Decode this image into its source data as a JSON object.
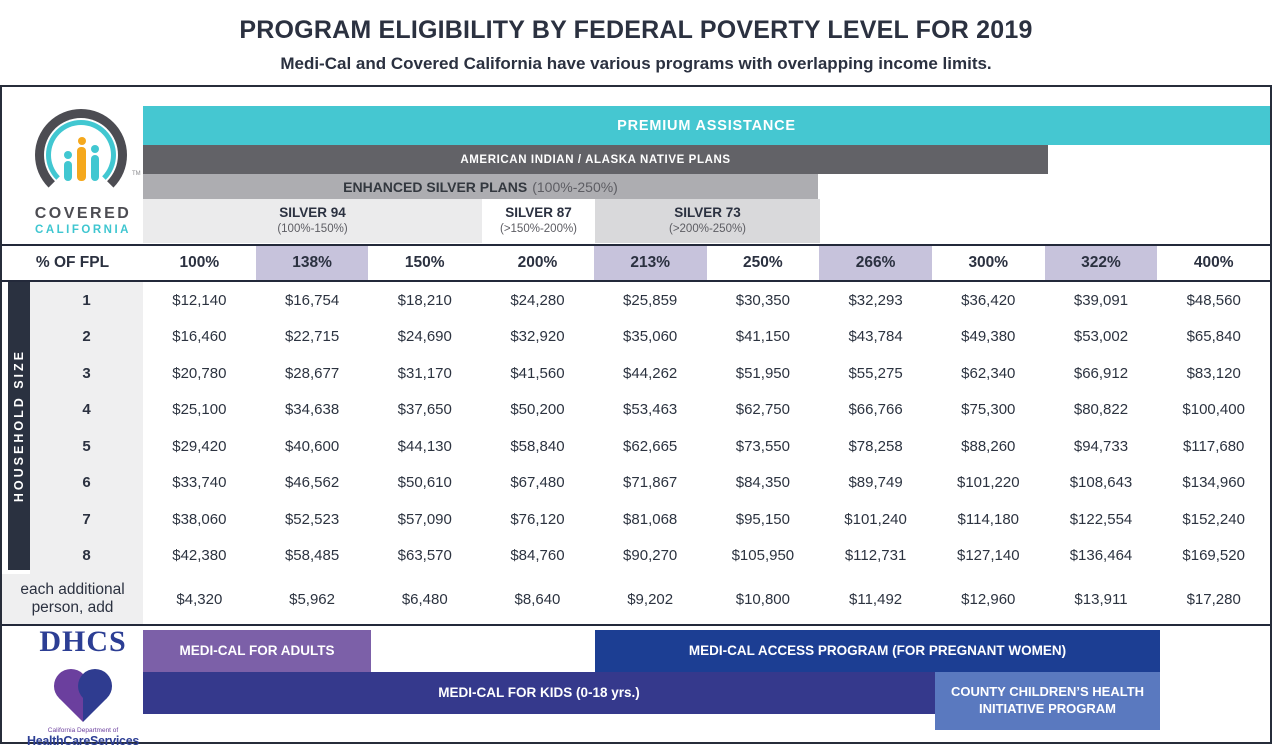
{
  "title": "PROGRAM ELIGIBILITY BY FEDERAL POVERTY LEVEL FOR 2019",
  "subtitle": "Medi-Cal and Covered California have various programs with overlapping income limits.",
  "logos": {
    "covered_california": {
      "line1": "COVERED",
      "line2": "CALIFORNIA",
      "tm": "TM"
    },
    "dhcs": {
      "acronym": "DHCS",
      "dept_line": "California Department of",
      "name": "HealthCareServices"
    }
  },
  "header_bars": {
    "premium_assistance": {
      "label": "PREMIUM ASSISTANCE",
      "color": "#45c7d1"
    },
    "ai_an_plans": {
      "label": "AMERICAN INDIAN / ALASKA NATIVE PLANS",
      "color": "#626267"
    },
    "enhanced_silver": {
      "label": "ENHANCED SILVER PLANS",
      "range": "(100%-250%)",
      "color": "#adadb1"
    },
    "silver_plans": [
      {
        "name": "SILVER 94",
        "range": "(100%-150%)"
      },
      {
        "name": "SILVER 87",
        "range": "(>150%-200%)"
      },
      {
        "name": "SILVER 73",
        "range": "(>200%-250%)"
      }
    ]
  },
  "table": {
    "corner_label": "% OF FPL",
    "side_label": "HOUSEHOLD SIZE",
    "highlight_color": "#c7c3dc",
    "columns": [
      {
        "label": "100%",
        "highlight": false
      },
      {
        "label": "138%",
        "highlight": true
      },
      {
        "label": "150%",
        "highlight": false
      },
      {
        "label": "200%",
        "highlight": false
      },
      {
        "label": "213%",
        "highlight": true
      },
      {
        "label": "250%",
        "highlight": false
      },
      {
        "label": "266%",
        "highlight": true
      },
      {
        "label": "300%",
        "highlight": false
      },
      {
        "label": "322%",
        "highlight": true
      },
      {
        "label": "400%",
        "highlight": false
      }
    ],
    "rows": [
      {
        "label": "1",
        "values": [
          "$12,140",
          "$16,754",
          "$18,210",
          "$24,280",
          "$25,859",
          "$30,350",
          "$32,293",
          "$36,420",
          "$39,091",
          "$48,560"
        ]
      },
      {
        "label": "2",
        "values": [
          "$16,460",
          "$22,715",
          "$24,690",
          "$32,920",
          "$35,060",
          "$41,150",
          "$43,784",
          "$49,380",
          "$53,002",
          "$65,840"
        ]
      },
      {
        "label": "3",
        "values": [
          "$20,780",
          "$28,677",
          "$31,170",
          "$41,560",
          "$44,262",
          "$51,950",
          "$55,275",
          "$62,340",
          "$66,912",
          "$83,120"
        ]
      },
      {
        "label": "4",
        "values": [
          "$25,100",
          "$34,638",
          "$37,650",
          "$50,200",
          "$53,463",
          "$62,750",
          "$66,766",
          "$75,300",
          "$80,822",
          "$100,400"
        ]
      },
      {
        "label": "5",
        "values": [
          "$29,420",
          "$40,600",
          "$44,130",
          "$58,840",
          "$62,665",
          "$73,550",
          "$78,258",
          "$88,260",
          "$94,733",
          "$117,680"
        ]
      },
      {
        "label": "6",
        "values": [
          "$33,740",
          "$46,562",
          "$50,610",
          "$67,480",
          "$71,867",
          "$84,350",
          "$89,749",
          "$101,220",
          "$108,643",
          "$134,960"
        ]
      },
      {
        "label": "7",
        "values": [
          "$38,060",
          "$52,523",
          "$57,090",
          "$76,120",
          "$81,068",
          "$95,150",
          "$101,240",
          "$114,180",
          "$122,554",
          "$152,240"
        ]
      },
      {
        "label": "8",
        "values": [
          "$42,380",
          "$58,485",
          "$63,570",
          "$84,760",
          "$90,270",
          "$105,950",
          "$112,731",
          "$127,140",
          "$136,464",
          "$169,520"
        ]
      }
    ],
    "additional_row": {
      "label": "each additional person, add",
      "values": [
        "$4,320",
        "$5,962",
        "$6,480",
        "$8,640",
        "$9,202",
        "$10,800",
        "$11,492",
        "$12,960",
        "$13,911",
        "$17,280"
      ]
    }
  },
  "program_bars": {
    "adults": {
      "label": "MEDI-CAL FOR ADULTS",
      "color": "#7c60a8"
    },
    "access": {
      "label": "MEDI-CAL ACCESS PROGRAM (FOR PREGNANT WOMEN)",
      "color": "#1c3e93"
    },
    "kids": {
      "label": "MEDI-CAL FOR KIDS (0-18 yrs.)",
      "color": "#35398c"
    },
    "county": {
      "label": "COUNTY CHILDREN’S HEALTH INITIATIVE PROGRAM",
      "color": "#5a79bf"
    }
  }
}
